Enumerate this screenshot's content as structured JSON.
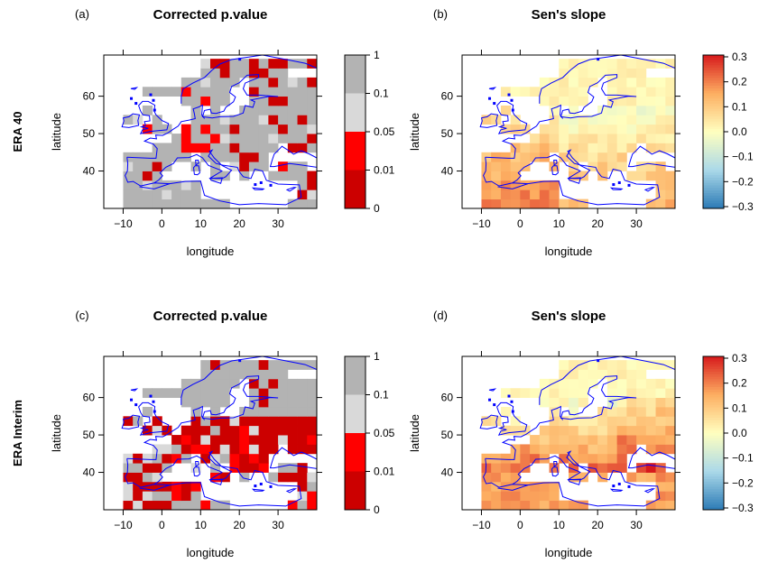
{
  "row_labels": [
    "ERA 40",
    "ERA Interim"
  ],
  "panels": [
    {
      "tag": "(a)",
      "title": "Corrected p.value",
      "kind": "pvalue",
      "row": 0,
      "col": 0
    },
    {
      "tag": "(b)",
      "title": "Sen's slope",
      "kind": "slope",
      "row": 0,
      "col": 1
    },
    {
      "tag": "(c)",
      "title": "Corrected p.value",
      "kind": "pvalue",
      "row": 1,
      "col": 0
    },
    {
      "tag": "(d)",
      "title": "Sen's slope",
      "kind": "slope",
      "row": 1,
      "col": 1
    }
  ],
  "axes": {
    "xlabel": "longitude",
    "ylabel": "latitude",
    "xlim": [
      -15,
      40
    ],
    "ylim": [
      30,
      71
    ],
    "xticks": [
      -10,
      0,
      10,
      20,
      30
    ],
    "yticks": [
      40,
      50,
      60
    ]
  },
  "colorbars": {
    "pvalue": {
      "ticks": [
        "1",
        "0.1",
        "0.05",
        "0.01",
        "0"
      ],
      "bands": [
        {
          "from": "0.1",
          "to": "1",
          "color": "#b3b3b3"
        },
        {
          "from": "0.05",
          "to": "0.1",
          "color": "#d9d9d9"
        },
        {
          "from": "0.01",
          "to": "0.05",
          "color": "#ff0000"
        },
        {
          "from": "0",
          "to": "0.01",
          "color": "#cc0000"
        }
      ]
    },
    "slope": {
      "ticks": [
        "0.3",
        "0.2",
        "0.1",
        "0.0",
        "-0.1",
        "-0.2",
        "-0.3"
      ],
      "range": [
        -0.3,
        0.3
      ],
      "colors": [
        "#2c7bb6",
        "#abd9e9",
        "#ffffbf",
        "#fdae61",
        "#d7191c"
      ]
    }
  },
  "chart_data": [
    {
      "type": "heatmap",
      "title": "Corrected p.value",
      "xlabel": "longitude",
      "ylabel": "latitude",
      "xlim": [
        -15,
        40
      ],
      "ylim": [
        30,
        71
      ],
      "legend": "right",
      "series": "ERA 40"
    },
    {
      "type": "heatmap",
      "title": "Sen's slope",
      "xlabel": "longitude",
      "ylabel": "latitude",
      "xlim": [
        -15,
        40
      ],
      "ylim": [
        30,
        71
      ],
      "legend": "right",
      "series": "ERA 40"
    },
    {
      "type": "heatmap",
      "title": "Corrected p.value",
      "xlabel": "longitude",
      "ylabel": "latitude",
      "xlim": [
        -15,
        40
      ],
      "ylim": [
        30,
        71
      ],
      "legend": "right",
      "series": "ERA Interim"
    },
    {
      "type": "heatmap",
      "title": "Sen's slope",
      "xlabel": "longitude",
      "ylabel": "latitude",
      "xlim": [
        -15,
        40
      ],
      "ylim": [
        30,
        71
      ],
      "legend": "right",
      "series": "ERA Interim"
    }
  ],
  "colors": {
    "coastline": "#0000ff",
    "grey_dark": "#b3b3b3",
    "grey_light": "#d9d9d9",
    "red": "#ff0000",
    "dark_red": "#cc0000"
  }
}
